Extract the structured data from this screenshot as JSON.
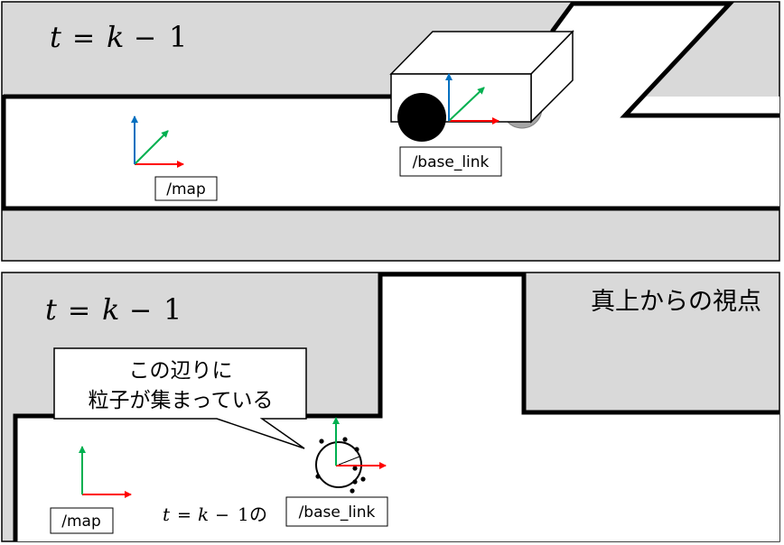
{
  "top_view": {
    "time_label": {
      "t": "t",
      "eq": "=",
      "k": "k",
      "minus": "−",
      "one": "1"
    },
    "map_frame_label": "/map",
    "base_link_frame_label": "/base_link"
  },
  "bottom_view": {
    "time_label": {
      "t": "t",
      "eq": "=",
      "k": "k",
      "minus": "−",
      "one": "1"
    },
    "view_caption": "真上からの視点",
    "callout_line1": "この辺りに",
    "callout_line2": "粒子が集まっている",
    "map_frame_label": "/map",
    "base_link_frame_label": "/base_link",
    "base_link_prefix": {
      "t": "t",
      "eq": "=",
      "k": "k",
      "minus": "−",
      "one": "1",
      "suffix": "の"
    }
  },
  "colors": {
    "wall_gray": "#d9d9d9",
    "x_axis": "#ff0000",
    "y_axis": "#00b050",
    "z_axis": "#0070c0",
    "robot_wheel": "#000000",
    "robot_rear_wheel": "#a6a6a6"
  }
}
